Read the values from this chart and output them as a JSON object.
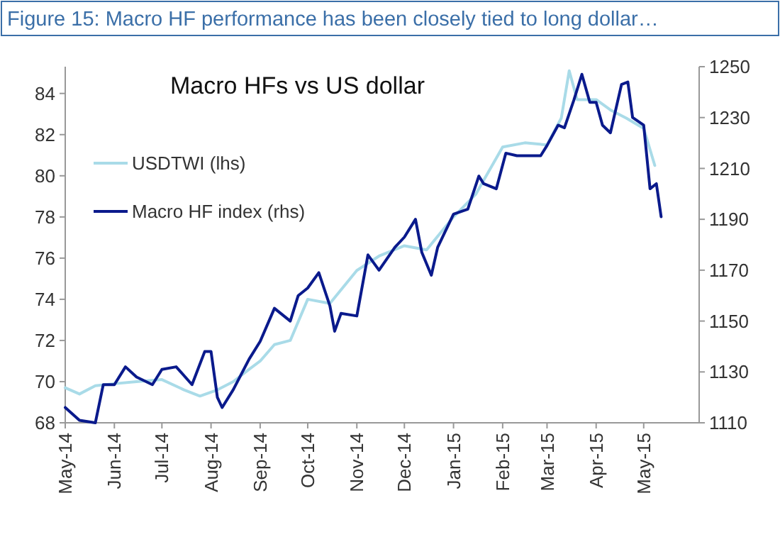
{
  "chart_data": {
    "type": "line",
    "title": "Figure 15: Macro HF performance has been closely tied to long dollar…",
    "subtitle": "Macro HFs vs US dollar",
    "xlim": [
      "2014-05-01",
      "2015-06-05"
    ],
    "xticks": [
      {
        "value": "2014-05-01",
        "label": "May-14"
      },
      {
        "value": "2014-06-01",
        "label": "Jun-14"
      },
      {
        "value": "2014-07-01",
        "label": "Jul-14"
      },
      {
        "value": "2014-08-01",
        "label": "Aug-14"
      },
      {
        "value": "2014-09-01",
        "label": "Sep-14"
      },
      {
        "value": "2014-10-01",
        "label": "Oct-14"
      },
      {
        "value": "2014-11-01",
        "label": "Nov-14"
      },
      {
        "value": "2014-12-01",
        "label": "Dec-14"
      },
      {
        "value": "2015-01-01",
        "label": "Jan-15"
      },
      {
        "value": "2015-02-01",
        "label": "Feb-15"
      },
      {
        "value": "2015-03-01",
        "label": "Mar-15"
      },
      {
        "value": "2015-04-01",
        "label": "Apr-15"
      },
      {
        "value": "2015-05-01",
        "label": "May-15"
      }
    ],
    "ylim": [
      68,
      85.3
    ],
    "yticks": [
      68,
      70,
      72,
      74,
      76,
      78,
      80,
      82,
      84
    ],
    "y2lim": [
      1110,
      1250
    ],
    "y2ticks": [
      1110,
      1130,
      1150,
      1170,
      1190,
      1210,
      1230,
      1250
    ],
    "legend": "top left",
    "grid": false,
    "line_style": "solid",
    "marker": "none",
    "series": [
      {
        "name": "USDTWI (lhs)",
        "color": "#a9dbe8",
        "x": [
          "2014-05-01",
          "2014-05-10",
          "2014-05-20",
          "2014-06-01",
          "2014-06-15",
          "2014-07-01",
          "2014-07-15",
          "2014-07-25",
          "2014-08-05",
          "2014-08-15",
          "2014-08-25",
          "2014-09-01",
          "2014-09-10",
          "2014-09-20",
          "2014-10-01",
          "2014-10-15",
          "2014-11-01",
          "2014-11-15",
          "2014-12-01",
          "2014-12-15",
          "2015-01-01",
          "2015-01-15",
          "2015-02-01",
          "2015-02-15",
          "2015-03-01",
          "2015-03-10",
          "2015-03-15",
          "2015-03-20",
          "2015-04-01",
          "2015-04-10",
          "2015-04-20",
          "2015-05-01",
          "2015-05-08"
        ],
        "values": [
          69.7,
          69.4,
          69.8,
          69.9,
          70.0,
          70.1,
          69.6,
          69.3,
          69.6,
          70.0,
          70.6,
          71.0,
          71.8,
          72.0,
          74.0,
          73.8,
          75.4,
          76.1,
          76.6,
          76.4,
          78.0,
          79.1,
          81.4,
          81.6,
          81.5,
          82.8,
          85.1,
          83.7,
          83.7,
          83.2,
          82.8,
          82.3,
          80.5
        ]
      },
      {
        "name": "Macro HF index (rhs)",
        "color": "#0a1a8c",
        "axis": "y2",
        "x": [
          "2014-05-01",
          "2014-05-10",
          "2014-05-20",
          "2014-05-25",
          "2014-06-01",
          "2014-06-08",
          "2014-06-15",
          "2014-06-25",
          "2014-07-01",
          "2014-07-10",
          "2014-07-20",
          "2014-07-28",
          "2014-08-01",
          "2014-08-05",
          "2014-08-08",
          "2014-08-15",
          "2014-08-25",
          "2014-09-01",
          "2014-09-10",
          "2014-09-20",
          "2014-09-25",
          "2014-10-01",
          "2014-10-08",
          "2014-10-15",
          "2014-10-18",
          "2014-10-22",
          "2014-11-01",
          "2014-11-08",
          "2014-11-15",
          "2014-11-25",
          "2014-12-01",
          "2014-12-08",
          "2014-12-12",
          "2014-12-18",
          "2014-12-22",
          "2015-01-01",
          "2015-01-10",
          "2015-01-17",
          "2015-01-20",
          "2015-01-28",
          "2015-02-03",
          "2015-02-10",
          "2015-02-20",
          "2015-02-25",
          "2015-03-01",
          "2015-03-08",
          "2015-03-12",
          "2015-03-18",
          "2015-03-23",
          "2015-03-28",
          "2015-04-01",
          "2015-04-05",
          "2015-04-10",
          "2015-04-17",
          "2015-04-21",
          "2015-04-24",
          "2015-05-01",
          "2015-05-05",
          "2015-05-09",
          "2015-05-12"
        ],
        "values": [
          1116,
          1111,
          1110,
          1125,
          1125,
          1132,
          1128,
          1125,
          1131,
          1132,
          1125,
          1138,
          1138,
          1120,
          1116,
          1123,
          1135,
          1142,
          1155,
          1150,
          1160,
          1163,
          1169,
          1156,
          1146,
          1153,
          1152,
          1176,
          1170,
          1179,
          1183,
          1190,
          1177,
          1168,
          1179,
          1192,
          1194,
          1207,
          1204,
          1202,
          1216,
          1215,
          1215,
          1215,
          1219,
          1227,
          1226,
          1237,
          1247,
          1236,
          1236,
          1227,
          1224,
          1243,
          1244,
          1230,
          1227,
          1202,
          1204,
          1191
        ]
      }
    ]
  }
}
